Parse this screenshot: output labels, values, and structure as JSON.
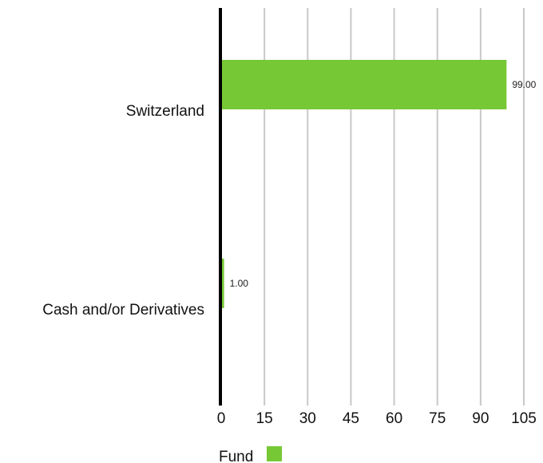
{
  "chart_data": {
    "type": "bar",
    "orientation": "horizontal",
    "categories": [
      "Switzerland",
      "Cash and/or Derivatives"
    ],
    "series": [
      {
        "name": "Fund",
        "values": [
          99.0,
          1.0
        ],
        "labels": [
          "99.00",
          "1.00"
        ],
        "color": "#76c935"
      }
    ],
    "xlim": [
      0,
      105
    ],
    "x_ticks": [
      0,
      15,
      30,
      45,
      60,
      75,
      90,
      105
    ],
    "grid": true,
    "legend_position": "bottom-left",
    "title": "",
    "xlabel": "",
    "ylabel": ""
  },
  "legend": {
    "label": "Fund",
    "color": "#76c935"
  },
  "colors": {
    "grid": "#c8c8c8",
    "axis": "#000000"
  }
}
